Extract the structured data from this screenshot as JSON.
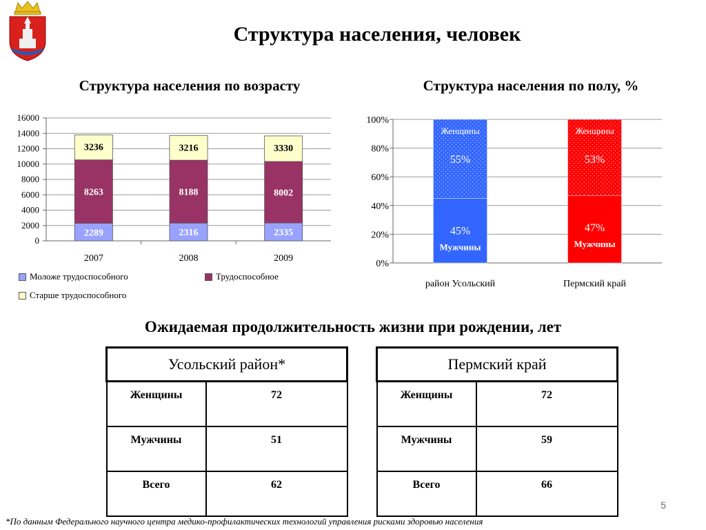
{
  "title": "Структура населения, человек",
  "age_chart_title": "Структура населения по возрасту",
  "sex_chart_title": "Структура населения по полу, %",
  "chart_data": [
    {
      "type": "bar",
      "stacked": true,
      "title": "Структура населения по возрасту",
      "categories": [
        "2007",
        "2008",
        "2009"
      ],
      "y_ticks": [
        "0",
        "2000",
        "4000",
        "6000",
        "8000",
        "10000",
        "12000",
        "14000",
        "16000"
      ],
      "ylim": [
        0,
        16000
      ],
      "series": [
        {
          "name": "Моложе трудоспособного",
          "values": [
            2289,
            2316,
            2335
          ],
          "labels": [
            "2289",
            "2316",
            "2335"
          ],
          "color": "#99A3FF"
        },
        {
          "name": "Трудоспособное",
          "values": [
            8263,
            8188,
            8002
          ],
          "labels": [
            "8263",
            "8188",
            "8002"
          ],
          "color": "#993366"
        },
        {
          "name": "Старше трудоспособного",
          "values": [
            3236,
            3216,
            3330
          ],
          "labels": [
            "3236",
            "3216",
            "3330"
          ],
          "color": "#FFFFCC"
        }
      ],
      "legend": "bottom"
    },
    {
      "type": "bar",
      "stacked": true,
      "percent": true,
      "title": "Структура населения по полу, %",
      "categories": [
        "район Усольский",
        "Пермский край"
      ],
      "y_ticks": [
        "0%",
        "20%",
        "40%",
        "60%",
        "80%",
        "100%"
      ],
      "ylim": [
        0,
        100
      ],
      "series": [
        {
          "name": "Мужчины",
          "values": [
            45,
            47
          ],
          "labels": [
            "45%",
            "47%"
          ],
          "series_labels": [
            "Мужчины",
            "Мужчины"
          ]
        },
        {
          "name": "Женщины",
          "values": [
            55,
            53
          ],
          "labels": [
            "55%",
            "53%"
          ],
          "series_labels": [
            "Женщины",
            "Женщины"
          ]
        }
      ],
      "bar_colors": [
        {
          "bottom": "#3366FF",
          "top": "#3366FF"
        },
        {
          "bottom": "#FF0000",
          "top": "#FF0000"
        }
      ]
    }
  ],
  "life_title": "Ожидаемая продолжительность жизни при рождении, лет",
  "tables": [
    {
      "header": "Усольский район*",
      "rows": [
        {
          "label": "Женщины",
          "value": "72"
        },
        {
          "label": "Мужчины",
          "value": "51"
        },
        {
          "label": "Всего",
          "value": "62"
        }
      ]
    },
    {
      "header": "Пермский край",
      "rows": [
        {
          "label": "Женщины",
          "value": "72"
        },
        {
          "label": "Мужчины",
          "value": "59"
        },
        {
          "label": "Всего",
          "value": "66"
        }
      ]
    }
  ],
  "page_number": "5",
  "footnote": "*По данным Федерального научного центра медико-профилактических технологий управления рисками здоровью населения"
}
